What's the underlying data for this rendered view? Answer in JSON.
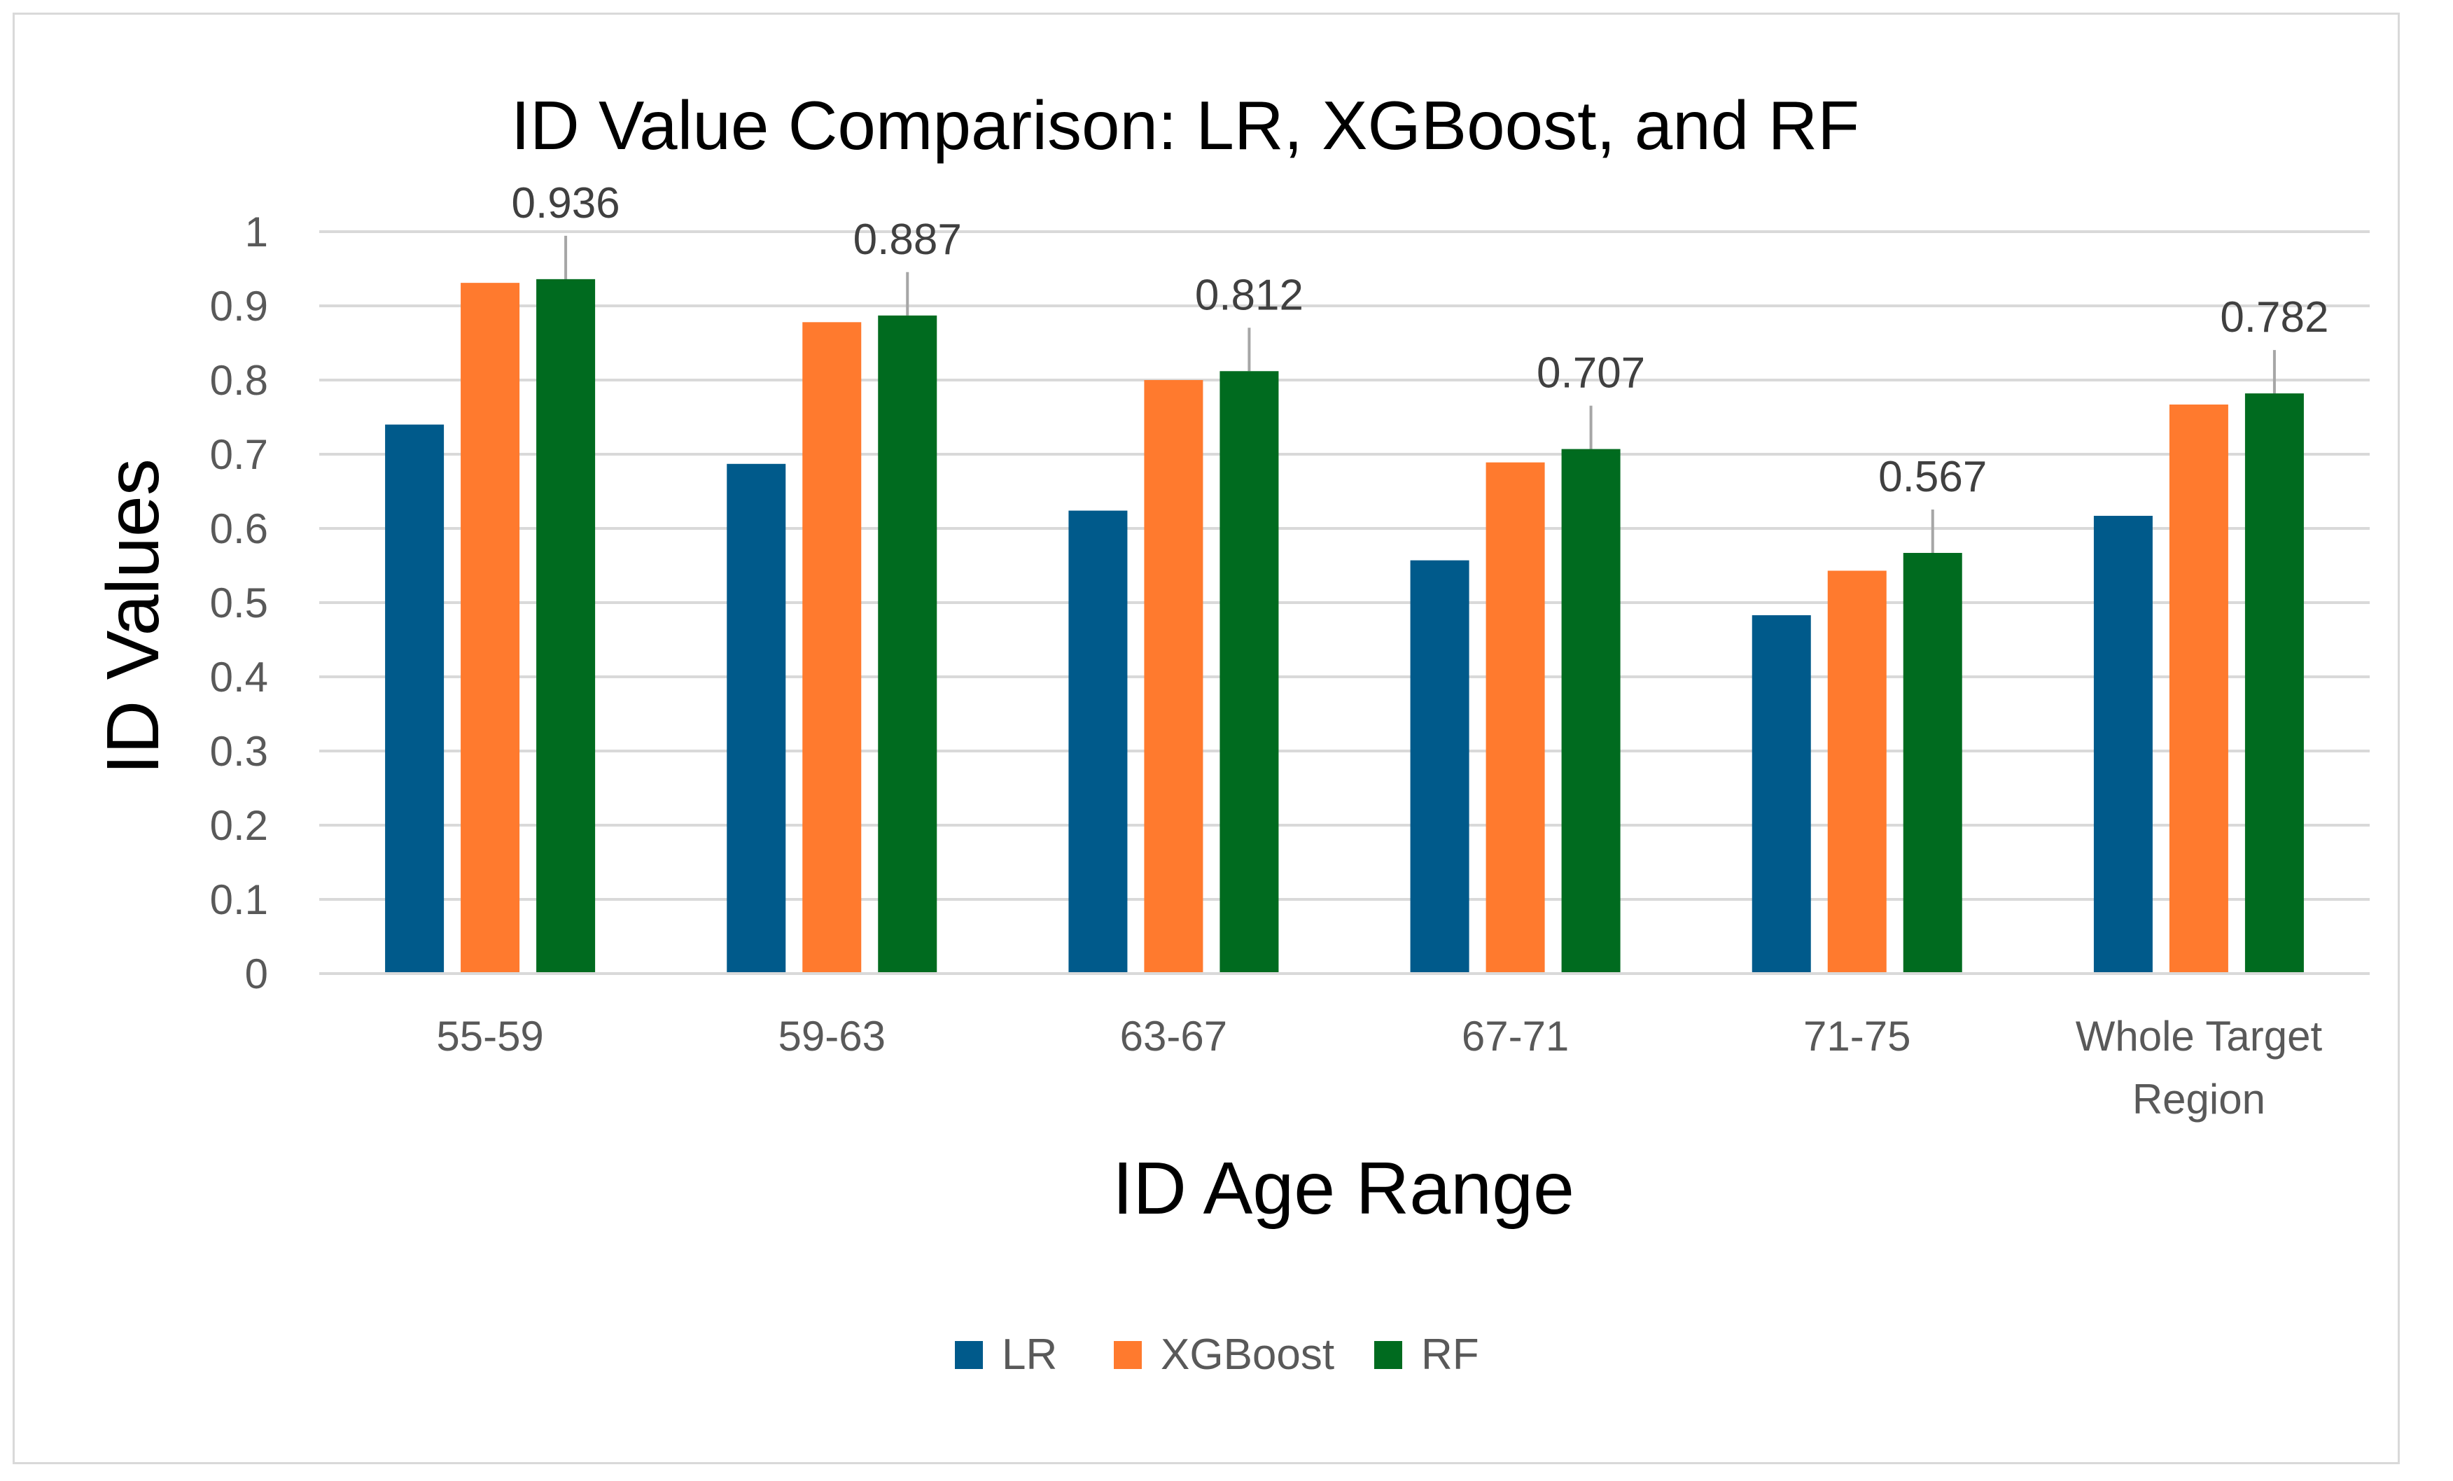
{
  "chart_data": {
    "type": "bar",
    "title": "ID Value Comparison: LR, XGBoost, and RF",
    "xlabel": "ID Age Range",
    "ylabel": "ID Values",
    "ylim": [
      0,
      1
    ],
    "yticks": [
      "0",
      "0.1",
      "0.2",
      "0.3",
      "0.4",
      "0.5",
      "0.6",
      "0.7",
      "0.8",
      "0.9",
      "1"
    ],
    "grid": true,
    "legend_position": "bottom",
    "categories": [
      [
        "55-59"
      ],
      [
        "59-63"
      ],
      [
        "63-67"
      ],
      [
        "67-71"
      ],
      [
        "71-75"
      ],
      [
        "Whole Target",
        "Region"
      ]
    ],
    "series": [
      {
        "name": "LR",
        "color": "#005A8B",
        "values": [
          0.74,
          0.687,
          0.624,
          0.557,
          0.483,
          0.617
        ]
      },
      {
        "name": "XGBoost",
        "color": "#FF7A2E",
        "values": [
          0.931,
          0.878,
          0.8,
          0.689,
          0.543,
          0.767
        ]
      },
      {
        "name": "RF",
        "color": "#006B1F",
        "values": [
          0.936,
          0.887,
          0.812,
          0.707,
          0.567,
          0.782
        ]
      }
    ],
    "data_labels": {
      "series": "RF",
      "texts": [
        "0.936",
        "0.887",
        "0.812",
        "0.707",
        "0.567",
        "0.782"
      ]
    }
  }
}
